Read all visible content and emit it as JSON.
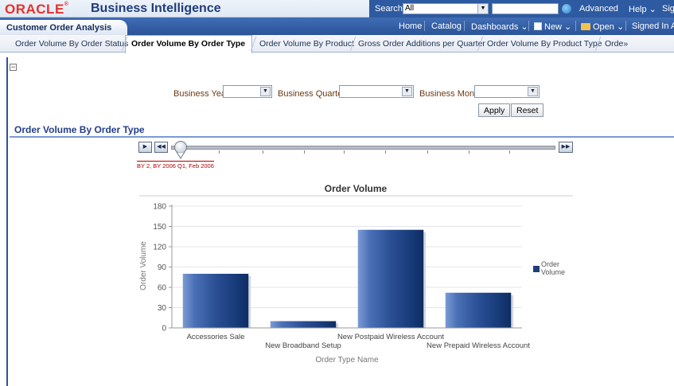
{
  "header": {
    "logo": "ORACLE",
    "logo_mark": "®",
    "product": "Business Intelligence",
    "search_label": "Search",
    "search_scope": "All",
    "links": [
      "Advanced",
      "Help ⌄",
      "Sig"
    ]
  },
  "dashboard": {
    "title": "Customer Order Analysis",
    "links": [
      "Home",
      "Catalog",
      "Dashboards ⌄",
      "New ⌄",
      "Open ⌄",
      "Signed In As"
    ]
  },
  "tabs": [
    {
      "label": "Order Volume By Order Status"
    },
    {
      "label": "Order Volume By Order Type",
      "active": true
    },
    {
      "label": "Order Volume By Product"
    },
    {
      "label": "Gross Order Additions per Quarter"
    },
    {
      "label": "Order Volume By Product Type"
    },
    {
      "label": "Orde»"
    }
  ],
  "prompts": {
    "year_label": "Business Year",
    "quarter_label": "Business Quarter",
    "month_label": "Business Month",
    "apply": "Apply",
    "reset": "Reset"
  },
  "report": {
    "title": "Order Volume By Order Type",
    "slider_label": "BY 2, BY 2006 Q1, Feb 2006"
  },
  "chart_data": {
    "type": "bar",
    "title": "Order Volume",
    "xlabel": "Order Type Name",
    "ylabel": "Order Volume",
    "ylim": [
      0,
      180
    ],
    "yticks": [
      0,
      30,
      60,
      90,
      120,
      150,
      180
    ],
    "categories": [
      "Accessories Sale",
      "New Broadband Setup",
      "New Postpaid Wireless Account",
      "New Prepaid Wireless Account"
    ],
    "series": [
      {
        "name": "Order Volume",
        "values": [
          80,
          10,
          145,
          52
        ],
        "color": "#1f3f7a"
      }
    ],
    "legend_position": "right",
    "grid": true
  }
}
